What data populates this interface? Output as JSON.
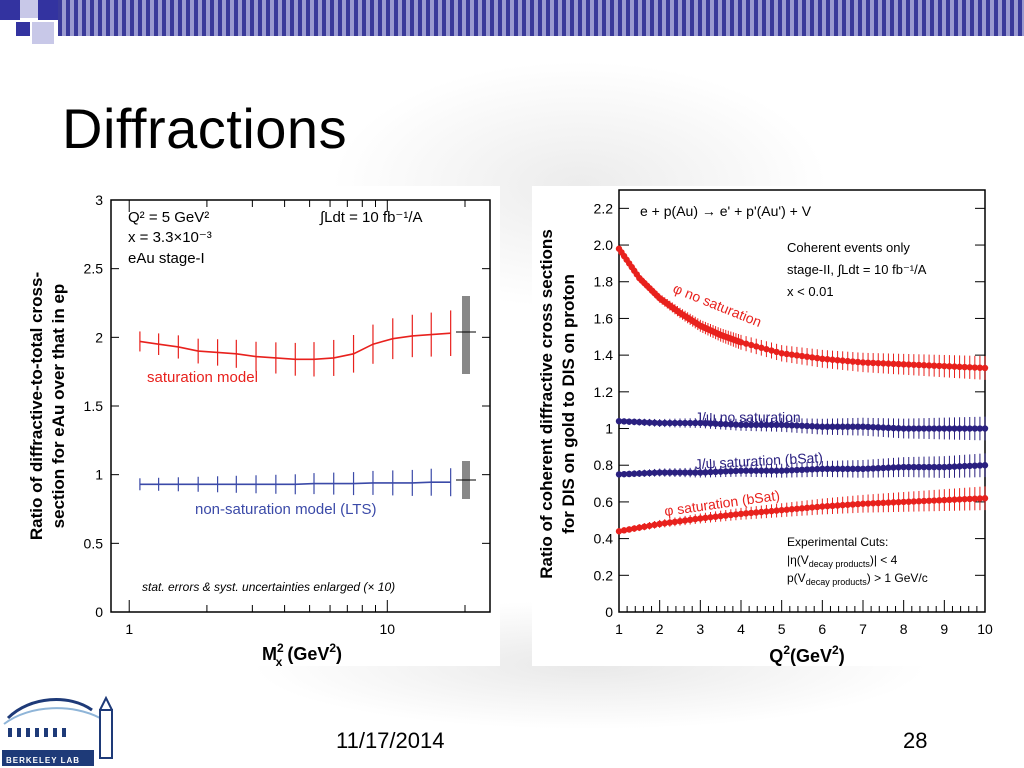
{
  "slide": {
    "title": "Diffractions",
    "date": "11/17/2014",
    "page_number": "28",
    "logo_text": "BERKELEY LAB",
    "colors": {
      "topbar": "#3333a0",
      "accent_square": "#2a2aa0",
      "light_square": "#c8c8e8"
    }
  },
  "chart_data": [
    {
      "type": "line",
      "ylabel_line1": "Ratio of diffractive-to-total cross-",
      "ylabel_line2": "section for eAu over that in ep",
      "xlabel": "M",
      "xlabel_sub": "x",
      "xlabel_sup": "2",
      "xlabel_unit": " (GeV",
      "xlabel_unit_sup": "2",
      "xlabel_close": ")",
      "xscale": "log",
      "xlim": [
        0.85,
        25
      ],
      "ylim": [
        0,
        3
      ],
      "yticks": [
        "0",
        "0.5",
        "1",
        "1.5",
        "2",
        "2.5",
        "3"
      ],
      "xtick_labels": [
        "1",
        "10"
      ],
      "info": {
        "q2": "Q² = 5 GeV²",
        "x": "x = 3.3×10⁻³",
        "stage": "eAu stage-I",
        "lumi": "∫Ldt = 10 fb⁻¹/A",
        "note": "stat. errors & syst. uncertainties enlarged (× 10)"
      },
      "series": [
        {
          "name": "saturation model",
          "color": "#e8211d",
          "x": [
            1.1,
            1.3,
            1.55,
            1.85,
            2.2,
            2.6,
            3.1,
            3.7,
            4.4,
            5.2,
            6.2,
            7.4,
            8.8,
            10.5,
            12.5,
            14.8,
            17.6
          ],
          "y": [
            1.97,
            1.95,
            1.93,
            1.9,
            1.89,
            1.88,
            1.86,
            1.85,
            1.84,
            1.84,
            1.85,
            1.88,
            1.95,
            1.99,
            2.01,
            2.02,
            2.03
          ]
        },
        {
          "name": "non-saturation model (LTS)",
          "color": "#3b4aa8",
          "x": [
            1.1,
            1.3,
            1.55,
            1.85,
            2.2,
            2.6,
            3.1,
            3.7,
            4.4,
            5.2,
            6.2,
            7.4,
            8.8,
            10.5,
            12.5,
            14.8,
            17.6
          ],
          "y": [
            0.93,
            0.93,
            0.93,
            0.93,
            0.93,
            0.93,
            0.93,
            0.93,
            0.93,
            0.935,
            0.935,
            0.935,
            0.94,
            0.94,
            0.94,
            0.945,
            0.945
          ]
        }
      ]
    },
    {
      "type": "scatter",
      "ylabel_line1": "Ratio of coherent diffractive cross sections",
      "ylabel_line2": "for DIS on gold to DIS on proton",
      "xlabel": "Q",
      "xlabel_sup": "2",
      "xlabel_unit": "(GeV",
      "xlabel_unit_sup": "2",
      "xlabel_close": ")",
      "xlim": [
        1,
        10
      ],
      "ylim": [
        0,
        2.3
      ],
      "yticks": [
        "0",
        "0.2",
        "0.4",
        "0.6",
        "0.8",
        "1",
        "1.2",
        "1.4",
        "1.6",
        "1.8",
        "2.0",
        "2.2"
      ],
      "xtick_labels": [
        "1",
        "2",
        "3",
        "4",
        "5",
        "6",
        "7",
        "8",
        "9",
        "10"
      ],
      "info": {
        "process": "e  + p(Au) → e' + p'(Au') + V",
        "coherent": "Coherent events only",
        "stage": "stage-II,  ∫Ldt = 10 fb⁻¹/A",
        "xcut": "x < 0.01",
        "cuts_title": "Experimental Cuts:",
        "cut1": "|η(V",
        "cut1_sub": "decay products",
        "cut1_end": ")| < 4",
        "cut2": "p(V",
        "cut2_sub": "decay products",
        "cut2_end": ") > 1 GeV/c"
      },
      "series": [
        {
          "name": "φ no saturation",
          "color": "#e8211d",
          "x": [
            1,
            1.5,
            2,
            2.5,
            3,
            3.5,
            4,
            5,
            6,
            7,
            8,
            9,
            10
          ],
          "y": [
            1.98,
            1.82,
            1.71,
            1.63,
            1.56,
            1.51,
            1.47,
            1.41,
            1.38,
            1.36,
            1.35,
            1.34,
            1.33
          ]
        },
        {
          "name": "J/ψ no saturation",
          "color": "#2a2080",
          "x": [
            1,
            2,
            3,
            4,
            5,
            6,
            7,
            8,
            9,
            10
          ],
          "y": [
            1.04,
            1.03,
            1.03,
            1.02,
            1.02,
            1.01,
            1.01,
            1.0,
            1.0,
            1.0
          ]
        },
        {
          "name": "J/ψ saturation (bSat)",
          "color": "#2a2080",
          "x": [
            1,
            2,
            3,
            4,
            5,
            6,
            7,
            8,
            9,
            10
          ],
          "y": [
            0.75,
            0.76,
            0.76,
            0.77,
            0.77,
            0.78,
            0.78,
            0.79,
            0.79,
            0.8
          ]
        },
        {
          "name": "φ saturation (bSat)",
          "color": "#e8211d",
          "x": [
            1,
            2,
            3,
            4,
            5,
            6,
            7,
            8,
            9,
            10
          ],
          "y": [
            0.44,
            0.48,
            0.51,
            0.535,
            0.555,
            0.575,
            0.59,
            0.6,
            0.61,
            0.62
          ]
        }
      ]
    }
  ]
}
